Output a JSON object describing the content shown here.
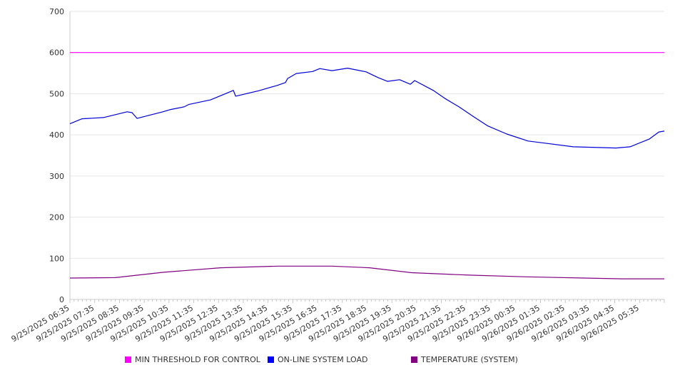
{
  "chart_data": {
    "type": "line",
    "title": "",
    "xlabel": "",
    "ylabel": "",
    "x_unit": "hours since 9/25/2025 06:35",
    "xlim": [
      0,
      24
    ],
    "ylim": [
      0,
      700
    ],
    "yticks": [
      0,
      100,
      200,
      300,
      400,
      500,
      600,
      700
    ],
    "grid": true,
    "legend_position": "bottom",
    "xtick_labels": [
      "9/25/2025 06:35",
      "9/25/2025 07:35",
      "9/25/2025 08:35",
      "9/25/2025 09:35",
      "9/25/2025 10:35",
      "9/25/2025 11:35",
      "9/25/2025 12:35",
      "9/25/2025 13:35",
      "9/25/2025 14:35",
      "9/25/2025 15:35",
      "9/25/2025 16:35",
      "9/25/2025 17:35",
      "9/25/2025 18:35",
      "9/25/2025 19:35",
      "9/25/2025 20:35",
      "9/25/2025 21:35",
      "9/25/2025 22:35",
      "9/25/2025 23:35",
      "9/26/2025 00:35",
      "9/26/2025 01:35",
      "9/26/2025 02:35",
      "9/26/2025 03:35",
      "9/26/2025 04:35",
      "9/26/2025 05:35"
    ],
    "series": [
      {
        "name": "MIN THRESHOLD FOR CONTROL",
        "color": "#FF00FF",
        "x": [
          0,
          24
        ],
        "y": [
          600,
          600
        ]
      },
      {
        "name": "ON-LINE SYSTEM LOAD",
        "color": "#0000DD",
        "x": [
          0,
          0.49,
          1.35,
          2.31,
          2.51,
          2.71,
          3.75,
          4.03,
          4.61,
          4.81,
          5.68,
          6.6,
          6.69,
          7.61,
          8.36,
          8.7,
          8.79,
          9.14,
          9.8,
          10.09,
          10.58,
          11.21,
          11.96,
          12.45,
          12.82,
          13.31,
          13.75,
          13.92,
          14.67,
          15.13,
          15.71,
          16.28,
          16.86,
          17.64,
          18.5,
          19.16,
          20.32,
          22.05,
          22.62,
          23.4,
          23.78,
          24
        ],
        "y": [
          427,
          439,
          442,
          456,
          454,
          440,
          456,
          461,
          468,
          474,
          485,
          508,
          494,
          507,
          520,
          527,
          537,
          549,
          554,
          561,
          556,
          562,
          553,
          539,
          530,
          534,
          523,
          532,
          508,
          489,
          468,
          445,
          422,
          402,
          385,
          380,
          371,
          368,
          371,
          390,
          407,
          409
        ]
      },
      {
        "name": "TEMPERATURE (SYSTEM)",
        "color": "#800080",
        "x": [
          0,
          1.84,
          3.78,
          6.08,
          8.41,
          10.58,
          12.1,
          13.8,
          16.11,
          18.44,
          20.75,
          22.3,
          24
        ],
        "y": [
          52,
          53,
          66,
          77,
          81,
          81,
          77,
          65,
          59,
          55,
          52,
          50,
          50
        ]
      }
    ]
  }
}
